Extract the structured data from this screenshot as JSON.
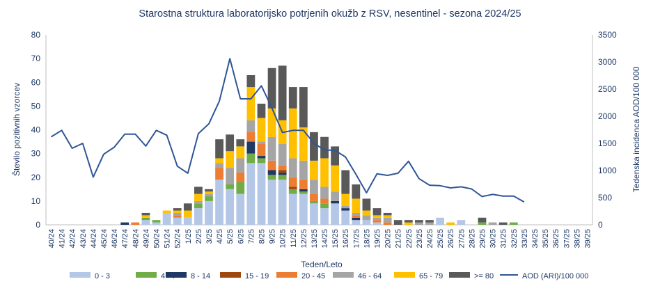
{
  "chart_data": {
    "type": "bar",
    "stacked": true,
    "title": "Starostna struktura  laboratorijsko potrjenih  okužb z RSV, nesentinel - sezona 2024/25",
    "xlabel": "Teden/Leto",
    "ylabel": "Število pozitivnih vzorcev",
    "y2label": "Tedenska incidenca AOD/100 000",
    "ylim": [
      0,
      80
    ],
    "y2lim": [
      0,
      3500
    ],
    "yticks": [
      0,
      10,
      20,
      30,
      40,
      50,
      60,
      70,
      80
    ],
    "y2ticks": [
      0,
      500,
      1000,
      1500,
      2000,
      2500,
      3000,
      3500
    ],
    "grid": false,
    "legend_position": "bottom",
    "categories": [
      "40/24",
      "41/24",
      "42/24",
      "43/24",
      "44/24",
      "45/24",
      "46/24",
      "47/24",
      "48/24",
      "49/24",
      "50/24",
      "51/24",
      "52/24",
      "1/25",
      "2/25",
      "3/25",
      "4/25",
      "5/25",
      "6/25",
      "7/25",
      "8/25",
      "9/25",
      "10/25",
      "11/25",
      "12/25",
      "13/25",
      "14/25",
      "15/25",
      "16/25",
      "17/25",
      "18/25",
      "19/25",
      "20/25",
      "21/25",
      "22/25",
      "23/25",
      "24/25",
      "25/25",
      "26/25",
      "27/25",
      "28/25",
      "29/25",
      "30/25",
      "31/25",
      "32/25",
      "33/25",
      "34/25",
      "35/25",
      "36/25",
      "37/25",
      "38/25",
      "39/25"
    ],
    "series": [
      {
        "name": "0 - 3",
        "color": "#B4C7E7",
        "values": [
          0,
          0,
          0,
          0,
          0,
          0,
          0,
          0,
          0,
          2,
          1,
          5,
          3,
          3,
          7,
          10,
          19,
          15,
          13,
          26,
          26,
          19,
          19,
          13,
          13,
          9,
          7,
          9,
          6,
          2,
          2,
          1,
          0,
          0,
          0,
          0,
          0,
          3,
          0,
          2,
          0,
          0,
          0,
          0,
          0,
          0,
          0,
          0,
          0,
          0,
          0,
          0
        ]
      },
      {
        "name": "4 - 7",
        "color": "#70AD47",
        "values": [
          0,
          0,
          0,
          0,
          0,
          0,
          0,
          0,
          0,
          1,
          1,
          0,
          0,
          0,
          2,
          2,
          0,
          2,
          5,
          4,
          2,
          2,
          2,
          2,
          1,
          1,
          2,
          0,
          0,
          0,
          0,
          0,
          0,
          0,
          0,
          0,
          0,
          0,
          0,
          0,
          0,
          1,
          0,
          0,
          1,
          0,
          0,
          0,
          0,
          0,
          0,
          0
        ]
      },
      {
        "name": "8 - 14",
        "color": "#203864",
        "values": [
          0,
          0,
          0,
          0,
          0,
          0,
          0,
          1,
          0,
          0,
          0,
          0,
          0,
          0,
          0,
          0,
          0,
          0,
          0,
          5,
          1,
          2,
          1,
          0,
          1,
          0,
          0,
          1,
          1,
          1,
          0,
          0,
          0,
          0,
          0,
          0,
          0,
          0,
          0,
          0,
          0,
          0,
          0,
          0,
          0,
          0,
          0,
          0,
          0,
          0,
          0,
          0
        ]
      },
      {
        "name": "15 - 19",
        "color": "#9E480E",
        "values": [
          0,
          0,
          0,
          0,
          0,
          0,
          0,
          0,
          0,
          0,
          0,
          0,
          0,
          0,
          0,
          0,
          0,
          0,
          0,
          0,
          0,
          0,
          1,
          1,
          0,
          0,
          0,
          0,
          0,
          0,
          0,
          0,
          0,
          0,
          0,
          0,
          0,
          0,
          0,
          0,
          0,
          0,
          0,
          0,
          0,
          0,
          0,
          0,
          0,
          0,
          0,
          0
        ]
      },
      {
        "name": "20 - 45",
        "color": "#ED7D31",
        "values": [
          0,
          0,
          0,
          0,
          0,
          0,
          0,
          0,
          1,
          0,
          0,
          0,
          1,
          0,
          0,
          0,
          5,
          0,
          4,
          4,
          5,
          4,
          2,
          4,
          4,
          3,
          2,
          0,
          0,
          1,
          0,
          1,
          1,
          0,
          0,
          0,
          0,
          0,
          0,
          0,
          0,
          0,
          0,
          0,
          0,
          0,
          0,
          0,
          0,
          0,
          0,
          0
        ]
      },
      {
        "name": "46 - 64",
        "color": "#A5A5A5",
        "values": [
          0,
          0,
          0,
          0,
          0,
          0,
          0,
          0,
          0,
          0,
          0,
          0,
          1,
          0,
          1,
          1,
          2,
          7,
          6,
          5,
          1,
          10,
          9,
          8,
          8,
          6,
          5,
          4,
          1,
          1,
          2,
          1,
          2,
          0,
          0,
          1,
          1,
          0,
          0,
          0,
          0,
          0,
          1,
          0,
          0,
          0,
          0,
          0,
          0,
          0,
          0,
          0
        ]
      },
      {
        "name": "65 - 79",
        "color": "#FFC000",
        "values": [
          0,
          0,
          0,
          0,
          0,
          0,
          0,
          0,
          0,
          1,
          0,
          1,
          1,
          3,
          3,
          1,
          2,
          7,
          5,
          14,
          10,
          12,
          10,
          21,
          14,
          8,
          12,
          11,
          5,
          6,
          2,
          1,
          1,
          0,
          1,
          0,
          0,
          0,
          1,
          0,
          0,
          0,
          0,
          0,
          0,
          0,
          0,
          0,
          0,
          0,
          0,
          0
        ]
      },
      {
        "name": ">= 80",
        "color": "#595959",
        "values": [
          0,
          0,
          0,
          0,
          0,
          0,
          0,
          0,
          0,
          1,
          0,
          0,
          1,
          3,
          3,
          1,
          8,
          7,
          3,
          5,
          6,
          17,
          23,
          9,
          17,
          12,
          9,
          8,
          10,
          6,
          5,
          3,
          1,
          2,
          1,
          1,
          1,
          0,
          0,
          0,
          0,
          2,
          0,
          1,
          0,
          0,
          0,
          0,
          0,
          0,
          0,
          0
        ]
      }
    ],
    "line": {
      "name": "AOD (ARI)/100 000",
      "color": "#2F5597",
      "axis": "right",
      "values": [
        1620,
        1740,
        1410,
        1500,
        880,
        1300,
        1430,
        1670,
        1670,
        1450,
        1740,
        1650,
        1080,
        950,
        1680,
        1860,
        2280,
        3060,
        2320,
        2320,
        2560,
        2150,
        1700,
        1740,
        1740,
        1500,
        1380,
        1370,
        1250,
        930,
        590,
        940,
        910,
        950,
        1170,
        850,
        730,
        720,
        680,
        700,
        660,
        520,
        560,
        530,
        530,
        420,
        null,
        null,
        null,
        null,
        null,
        null
      ]
    }
  }
}
